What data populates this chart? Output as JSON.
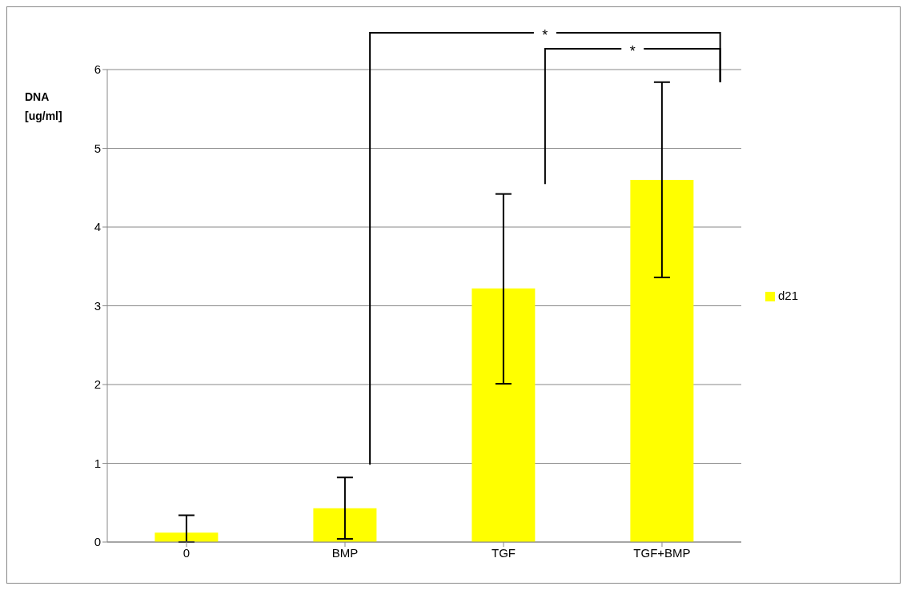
{
  "chart_data": {
    "type": "bar",
    "ylabel": "DNA [ug/ml]",
    "categories": [
      "0",
      "BMP",
      "TGF",
      "TGF+BMP"
    ],
    "series": [
      {
        "name": "d21",
        "color": "#ffff00",
        "values": [
          0.12,
          0.43,
          3.22,
          4.6
        ],
        "errors": [
          [
            0,
            0.34
          ],
          [
            0.04,
            0.82
          ],
          [
            2.01,
            4.42
          ],
          [
            3.36,
            5.84
          ]
        ]
      }
    ],
    "ylim": [
      0,
      6
    ],
    "yticks": [
      0,
      1,
      2,
      3,
      4,
      5,
      6
    ],
    "grid": "y",
    "legend": "right",
    "annotations": [
      "*",
      "*"
    ]
  }
}
